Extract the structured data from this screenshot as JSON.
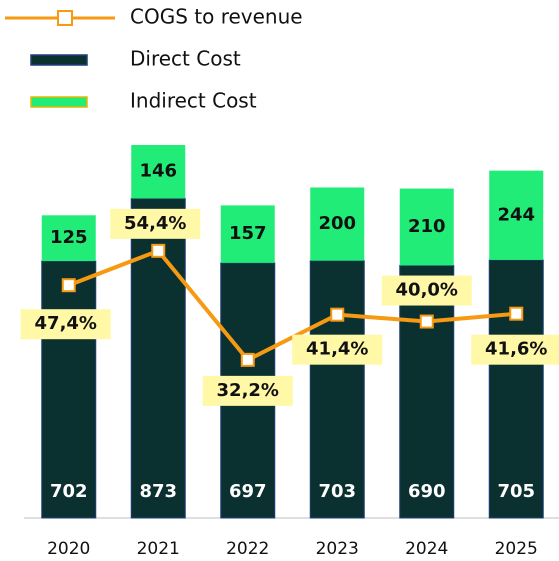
{
  "chart_data": {
    "type": "bar",
    "stacked": true,
    "categories": [
      "2020",
      "2021",
      "2022",
      "2023",
      "2024",
      "2025"
    ],
    "series": [
      {
        "name": "Direct Cost",
        "type": "bar",
        "color": "#0b3030",
        "values": [
          702,
          873,
          697,
          703,
          690,
          705
        ]
      },
      {
        "name": "Indirect Cost",
        "type": "bar",
        "color": "#22ec78",
        "values": [
          125,
          146,
          157,
          200,
          210,
          244
        ]
      },
      {
        "name": "COGS to revenue",
        "type": "line",
        "axis": "y2",
        "color": "#f59a12",
        "values": [
          47.4,
          54.4,
          32.2,
          41.4,
          40.0,
          41.6
        ],
        "value_labels": [
          "47,4%",
          "54,4%",
          "32,2%",
          "41,4%",
          "40,0%",
          "41,6%"
        ]
      }
    ],
    "ylim": [
      0,
      1060
    ],
    "y2lim": [
      0,
      79
    ],
    "grid": false,
    "legend": "top-left"
  }
}
